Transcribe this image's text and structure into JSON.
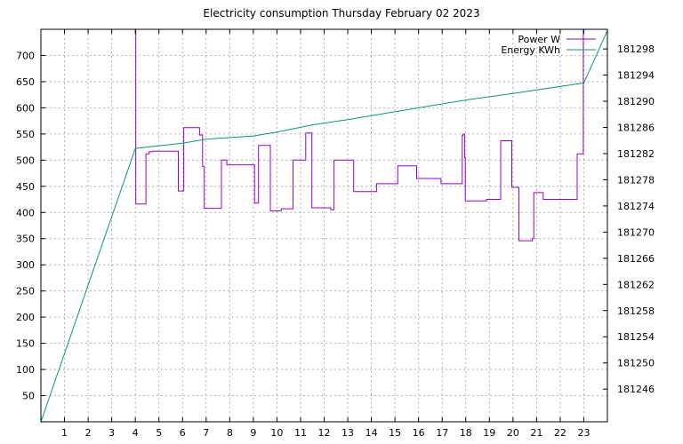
{
  "chart_data": {
    "type": "line",
    "title": "Electricity consumption Thursday February 02 2023",
    "xlabel": "",
    "ylabel": "",
    "y2label": "",
    "xlim": [
      0,
      24
    ],
    "ylim": [
      0,
      750
    ],
    "y2lim": [
      181241,
      181301
    ],
    "x_ticks": [
      1,
      2,
      3,
      4,
      5,
      6,
      7,
      8,
      9,
      10,
      11,
      12,
      13,
      14,
      15,
      16,
      17,
      18,
      19,
      20,
      21,
      22,
      23
    ],
    "y_ticks": [
      50,
      100,
      150,
      200,
      250,
      300,
      350,
      400,
      450,
      500,
      550,
      600,
      650,
      700
    ],
    "y2_ticks": [
      181246,
      181250,
      181254,
      181258,
      181262,
      181266,
      181270,
      181274,
      181278,
      181282,
      181286,
      181290,
      181294,
      181298
    ],
    "grid": true,
    "legend_position": "top-right",
    "series": [
      {
        "name": "Power W",
        "color": "#9400d3",
        "axis": "left",
        "x": [
          4.0,
          4.02,
          4.02,
          4.45,
          4.45,
          4.58,
          4.58,
          4.72,
          4.72,
          5.82,
          5.82,
          6.05,
          6.05,
          6.72,
          6.72,
          6.85,
          6.85,
          6.92,
          6.92,
          7.65,
          7.65,
          7.88,
          7.88,
          9.05,
          9.05,
          9.22,
          9.22,
          9.72,
          9.72,
          10.18,
          10.18,
          10.68,
          10.68,
          11.22,
          11.22,
          11.48,
          11.48,
          12.28,
          12.28,
          12.42,
          12.42,
          13.15,
          13.15,
          13.25,
          13.25,
          14.15,
          14.15,
          14.22,
          14.22,
          15.12,
          15.12,
          15.92,
          15.92,
          16.95,
          16.95,
          17.85,
          17.85,
          17.88,
          17.88,
          17.95,
          17.95,
          17.98,
          17.98,
          18.88,
          18.88,
          19.48,
          19.48,
          19.95,
          19.95,
          20.25,
          20.25,
          20.82,
          20.82,
          20.88,
          20.88,
          21.28,
          21.28,
          22.72,
          22.72,
          22.98,
          22.98,
          23.0
        ],
        "y": [
          750,
          750,
          416,
          416,
          512,
          512,
          516,
          516,
          517,
          517,
          441,
          441,
          562,
          562,
          548,
          548,
          488,
          488,
          408,
          408,
          500,
          500,
          491,
          491,
          418,
          418,
          528,
          528,
          403,
          403,
          407,
          407,
          500,
          500,
          552,
          552,
          409,
          409,
          405,
          405,
          500,
          500,
          500,
          500,
          440,
          440,
          440,
          440,
          455,
          455,
          489,
          489,
          465,
          465,
          455,
          455,
          547,
          547,
          550,
          550,
          505,
          505,
          422,
          422,
          425,
          425,
          537,
          537,
          448,
          448,
          346,
          346,
          350,
          350,
          438,
          438,
          425,
          425,
          512,
          512,
          750,
          750
        ]
      },
      {
        "name": "Energy KWh",
        "color": "#009e73",
        "axis": "right",
        "x": [
          0.0,
          4.0,
          6.0,
          7.0,
          9.0,
          10.0,
          11.5,
          13.0,
          15.5,
          18.0,
          20.0,
          23.0,
          24.0
        ],
        "y": [
          181241.0,
          181282.8,
          181283.6,
          181284.2,
          181284.7,
          181285.3,
          181286.4,
          181287.2,
          181288.7,
          181290.2,
          181291.2,
          181292.8,
          181300.8
        ]
      }
    ]
  }
}
